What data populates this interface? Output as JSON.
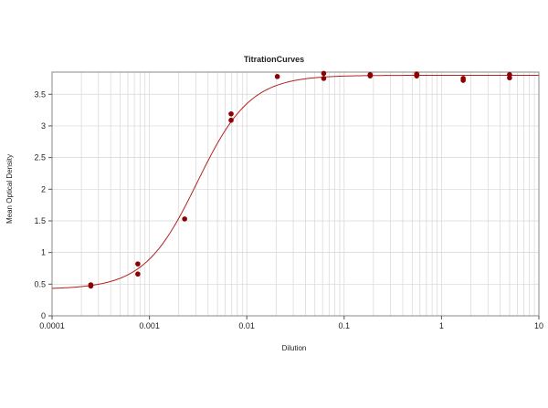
{
  "chart_data": {
    "type": "scatter",
    "title": "TitrationCurves",
    "xlabel": "Dilution",
    "ylabel": "Mean Optical Density",
    "x_scale": "log",
    "xlim": [
      0.0001,
      10
    ],
    "ylim": [
      0,
      3.85
    ],
    "grid": true,
    "x_ticks": [
      "0.0001",
      "0.001",
      "0.01",
      "0.1",
      "1",
      "10"
    ],
    "x_tick_values": [
      0.0001,
      0.001,
      0.01,
      0.1,
      1,
      10
    ],
    "y_ticks": [
      "0",
      "0.5",
      "1",
      "1.5",
      "2",
      "2.5",
      "3",
      "3.5"
    ],
    "y_tick_values": [
      0,
      0.5,
      1,
      1.5,
      2,
      2.5,
      3,
      3.5
    ],
    "points": [
      {
        "x": 0.00025,
        "y": 0.47
      },
      {
        "x": 0.00025,
        "y": 0.49
      },
      {
        "x": 0.00076,
        "y": 0.66
      },
      {
        "x": 0.00076,
        "y": 0.82
      },
      {
        "x": 0.0023,
        "y": 1.53
      },
      {
        "x": 0.0069,
        "y": 3.09
      },
      {
        "x": 0.0069,
        "y": 3.19
      },
      {
        "x": 0.0206,
        "y": 3.78
      },
      {
        "x": 0.0617,
        "y": 3.75
      },
      {
        "x": 0.0617,
        "y": 3.83
      },
      {
        "x": 0.185,
        "y": 3.79
      },
      {
        "x": 0.185,
        "y": 3.81
      },
      {
        "x": 0.556,
        "y": 3.79
      },
      {
        "x": 0.556,
        "y": 3.82
      },
      {
        "x": 1.67,
        "y": 3.72
      },
      {
        "x": 1.67,
        "y": 3.75
      },
      {
        "x": 5.0,
        "y": 3.76
      },
      {
        "x": 5.0,
        "y": 3.81
      }
    ],
    "fit": {
      "model": "4PL",
      "bottom": 0.42,
      "top": 3.8,
      "ec50": 0.0031,
      "hill": 1.6
    },
    "colors": {
      "point": "#8b0000",
      "curve": "#b22222",
      "grid": "#d6d6d6",
      "axis": "#888888"
    }
  }
}
